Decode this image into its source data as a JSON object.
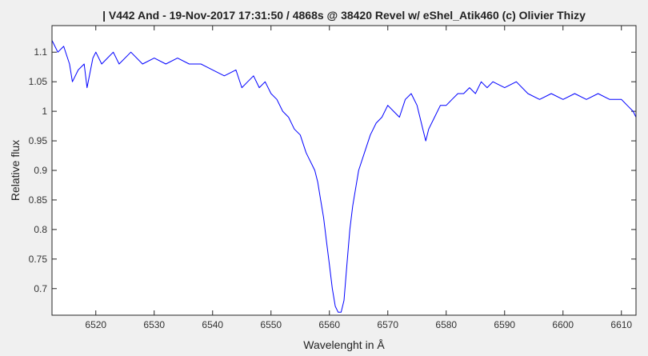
{
  "chart_data": {
    "type": "line",
    "title": "| V442 And - 19-Nov-2017 17:31:50 / 4868s @ 38420 Revel w/ eShel_Atik460 (c) Olivier Thizy",
    "xlabel": "Wavelenght in Å",
    "ylabel": "Relative flux",
    "xlim": [
      6512.5,
      6612.5
    ],
    "ylim": [
      0.655,
      1.145
    ],
    "xticks": [
      6520,
      6530,
      6540,
      6550,
      6560,
      6570,
      6580,
      6590,
      6600,
      6610
    ],
    "xtick_labels": [
      "6520",
      "6530",
      "6540",
      "6550",
      "6560",
      "6570",
      "6580",
      "6590",
      "6600",
      "6610"
    ],
    "yticks": [
      0.7,
      0.75,
      0.8,
      0.85,
      0.9,
      0.95,
      1.0,
      1.05,
      1.1
    ],
    "ytick_labels": [
      "0.7",
      "0.75",
      "0.8",
      "0.85",
      "0.9",
      "0.95",
      "1",
      "1.05",
      "1.1"
    ],
    "grid": false,
    "series": [
      {
        "color": "#0000ff",
        "x": [
          6512.5,
          6513.5,
          6514.5,
          6515.5,
          6516.0,
          6517.0,
          6518.0,
          6518.5,
          6519.5,
          6520.0,
          6521.0,
          6522.0,
          6523.0,
          6524.0,
          6526.0,
          6528.0,
          6530.0,
          6532.0,
          6534.0,
          6536.0,
          6538.0,
          6540.0,
          6542.0,
          6544.0,
          6545.0,
          6546.0,
          6547.0,
          6548.0,
          6549.0,
          6550.0,
          6551.0,
          6552.0,
          6553.0,
          6554.0,
          6555.0,
          6556.0,
          6556.5,
          6557.0,
          6557.5,
          6558.0,
          6558.5,
          6559.0,
          6559.5,
          6560.0,
          6560.5,
          6561.0,
          6561.5,
          6562.0,
          6562.5,
          6563.0,
          6563.5,
          6564.0,
          6564.5,
          6565.0,
          6566.0,
          6567.0,
          6568.0,
          6569.0,
          6570.0,
          6571.0,
          6572.0,
          6573.0,
          6574.0,
          6575.0,
          6576.0,
          6576.5,
          6577.0,
          6578.0,
          6579.0,
          6580.0,
          6581.0,
          6582.0,
          6583.0,
          6584.0,
          6585.0,
          6586.0,
          6587.0,
          6588.0,
          6590.0,
          6592.0,
          6594.0,
          6596.0,
          6598.0,
          6600.0,
          6602.0,
          6604.0,
          6606.0,
          6608.0,
          6610.0,
          6611.0,
          6612.0,
          6612.5
        ],
        "y": [
          1.12,
          1.1,
          1.11,
          1.08,
          1.05,
          1.07,
          1.08,
          1.04,
          1.09,
          1.1,
          1.08,
          1.09,
          1.1,
          1.08,
          1.1,
          1.08,
          1.09,
          1.08,
          1.09,
          1.08,
          1.08,
          1.07,
          1.06,
          1.07,
          1.04,
          1.05,
          1.06,
          1.04,
          1.05,
          1.03,
          1.02,
          1.0,
          0.99,
          0.97,
          0.96,
          0.93,
          0.92,
          0.91,
          0.9,
          0.88,
          0.85,
          0.82,
          0.78,
          0.74,
          0.7,
          0.67,
          0.66,
          0.66,
          0.68,
          0.74,
          0.8,
          0.84,
          0.87,
          0.9,
          0.93,
          0.96,
          0.98,
          0.99,
          1.01,
          1.0,
          0.99,
          1.02,
          1.03,
          1.01,
          0.97,
          0.95,
          0.97,
          0.99,
          1.01,
          1.01,
          1.02,
          1.03,
          1.03,
          1.04,
          1.03,
          1.05,
          1.04,
          1.05,
          1.04,
          1.05,
          1.03,
          1.02,
          1.03,
          1.02,
          1.03,
          1.02,
          1.03,
          1.02,
          1.02,
          1.01,
          1.0,
          0.99
        ]
      }
    ]
  }
}
